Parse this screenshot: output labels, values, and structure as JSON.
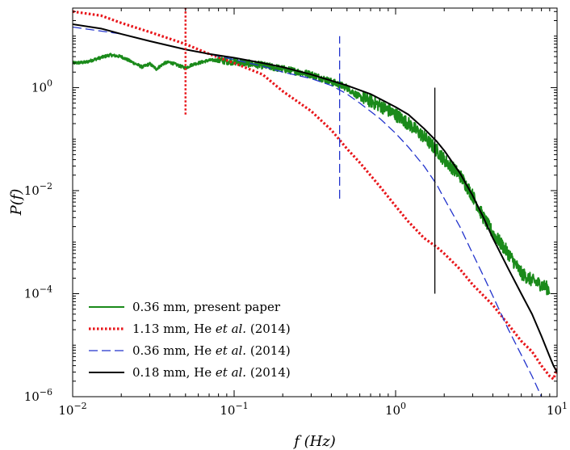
{
  "chart_data": {
    "type": "line",
    "xlabel": "f (Hz)",
    "ylabel": "P(f)",
    "xscale": "log",
    "yscale": "log",
    "xlim": [
      0.01,
      10
    ],
    "ylim": [
      1e-06,
      35
    ],
    "x_ticks": [
      {
        "value": 0.01,
        "base": "10",
        "exp": "−2"
      },
      {
        "value": 0.1,
        "base": "10",
        "exp": "−1"
      },
      {
        "value": 1,
        "base": "10",
        "exp": "0"
      },
      {
        "value": 10,
        "base": "10",
        "exp": "1"
      }
    ],
    "y_ticks": [
      {
        "value": 1e-06,
        "base": "10",
        "exp": "−6"
      },
      {
        "value": 0.0001,
        "base": "10",
        "exp": "−4"
      },
      {
        "value": 0.01,
        "base": "10",
        "exp": "−2"
      },
      {
        "value": 1,
        "base": "10",
        "exp": "0"
      }
    ],
    "legend_position": "bottom-left",
    "grid": false,
    "series": [
      {
        "name": "0.36 mm, present paper",
        "color": "#1a8a1a",
        "style": "solid",
        "noisy": true,
        "points": [
          [
            0.01,
            3.0
          ],
          [
            0.012,
            3.1
          ],
          [
            0.014,
            3.6
          ],
          [
            0.017,
            4.3
          ],
          [
            0.02,
            4.0
          ],
          [
            0.023,
            3.2
          ],
          [
            0.027,
            2.5
          ],
          [
            0.03,
            2.9
          ],
          [
            0.033,
            2.3
          ],
          [
            0.037,
            3.0
          ],
          [
            0.04,
            3.1
          ],
          [
            0.045,
            2.7
          ],
          [
            0.05,
            2.4
          ],
          [
            0.055,
            2.8
          ],
          [
            0.06,
            3.0
          ],
          [
            0.07,
            3.4
          ],
          [
            0.08,
            3.4
          ],
          [
            0.1,
            3.2
          ],
          [
            0.15,
            2.7
          ],
          [
            0.2,
            2.3
          ],
          [
            0.3,
            1.8
          ],
          [
            0.4,
            1.3
          ],
          [
            0.5,
            1.0
          ],
          [
            0.6,
            0.65
          ],
          [
            0.7,
            0.55
          ],
          [
            0.8,
            0.45
          ],
          [
            1.0,
            0.3
          ],
          [
            1.2,
            0.2
          ],
          [
            1.5,
            0.11
          ],
          [
            1.8,
            0.06
          ],
          [
            2.0,
            0.04
          ],
          [
            2.5,
            0.02
          ],
          [
            3.0,
            0.008
          ],
          [
            3.5,
            0.003
          ],
          [
            4.0,
            0.0015
          ],
          [
            5.0,
            0.0006
          ],
          [
            6.0,
            0.00025
          ],
          [
            7.0,
            0.00018
          ],
          [
            8.0,
            0.00015
          ],
          [
            9.0,
            0.00012
          ]
        ]
      },
      {
        "name": "1.13 mm, He et al. (2014)",
        "color": "#e8161b",
        "style": "dotted",
        "noisy": false,
        "points": [
          [
            0.01,
            30
          ],
          [
            0.015,
            25
          ],
          [
            0.02,
            18
          ],
          [
            0.03,
            12
          ],
          [
            0.05,
            7
          ],
          [
            0.07,
            4.5
          ],
          [
            0.1,
            3.0
          ],
          [
            0.15,
            1.8
          ],
          [
            0.2,
            0.85
          ],
          [
            0.3,
            0.35
          ],
          [
            0.4,
            0.15
          ],
          [
            0.5,
            0.065
          ],
          [
            0.6,
            0.035
          ],
          [
            0.8,
            0.012
          ],
          [
            1.0,
            0.005
          ],
          [
            1.2,
            0.0025
          ],
          [
            1.5,
            0.0012
          ],
          [
            1.8,
            0.0008
          ],
          [
            2.0,
            0.0006
          ],
          [
            2.5,
            0.0003
          ],
          [
            3.0,
            0.00015
          ],
          [
            4.0,
            6e-05
          ],
          [
            5.0,
            2.5e-05
          ],
          [
            6.0,
            1.2e-05
          ],
          [
            7.0,
            7.5e-06
          ],
          [
            8.0,
            4e-06
          ],
          [
            9.0,
            2.5e-06
          ],
          [
            9.5,
            2.2e-06
          ],
          [
            10,
            3.5e-06
          ]
        ]
      },
      {
        "name": "0.36 mm, He et al. (2014)",
        "color": "#2233cc",
        "style": "dashed",
        "noisy": false,
        "points": [
          [
            0.01,
            15
          ],
          [
            0.02,
            11
          ],
          [
            0.03,
            8
          ],
          [
            0.05,
            5.5
          ],
          [
            0.07,
            4.5
          ],
          [
            0.1,
            3.5
          ],
          [
            0.15,
            2.6
          ],
          [
            0.2,
            2.0
          ],
          [
            0.3,
            1.5
          ],
          [
            0.4,
            1.1
          ],
          [
            0.5,
            0.75
          ],
          [
            0.6,
            0.5
          ],
          [
            0.8,
            0.25
          ],
          [
            1.0,
            0.13
          ],
          [
            1.2,
            0.07
          ],
          [
            1.5,
            0.03
          ],
          [
            1.8,
            0.013
          ],
          [
            2.0,
            0.007
          ],
          [
            2.5,
            0.002
          ],
          [
            3.0,
            0.0006
          ],
          [
            3.5,
            0.00022
          ],
          [
            4.0,
            9e-05
          ],
          [
            5.0,
            2e-05
          ],
          [
            6.0,
            6.5e-06
          ],
          [
            7.0,
            2.5e-06
          ],
          [
            8.0,
            1e-06
          ],
          [
            9.0,
            5e-07
          ]
        ]
      },
      {
        "name": "0.18 mm, He et al. (2014)",
        "color": "#000000",
        "style": "solid",
        "noisy": false,
        "points": [
          [
            0.01,
            17
          ],
          [
            0.015,
            14
          ],
          [
            0.02,
            11
          ],
          [
            0.03,
            8
          ],
          [
            0.05,
            5.5
          ],
          [
            0.07,
            4.5
          ],
          [
            0.1,
            3.8
          ],
          [
            0.15,
            3.0
          ],
          [
            0.2,
            2.5
          ],
          [
            0.3,
            1.8
          ],
          [
            0.5,
            1.1
          ],
          [
            0.7,
            0.75
          ],
          [
            1.0,
            0.42
          ],
          [
            1.2,
            0.3
          ],
          [
            1.5,
            0.16
          ],
          [
            1.8,
            0.09
          ],
          [
            2.0,
            0.06
          ],
          [
            2.5,
            0.022
          ],
          [
            3.0,
            0.008
          ],
          [
            3.5,
            0.003
          ],
          [
            4.0,
            0.0012
          ],
          [
            5.0,
            0.0003
          ],
          [
            6.0,
            0.0001
          ],
          [
            7.0,
            4e-05
          ],
          [
            8.0,
            1.5e-05
          ],
          [
            9.0,
            6e-06
          ],
          [
            9.5,
            4e-06
          ],
          [
            10,
            3e-06
          ]
        ]
      }
    ],
    "vertical_markers": [
      {
        "x": 0.05,
        "y_bottom": 0.3,
        "y_top": 35,
        "color": "#e8161b",
        "style": "dotted"
      },
      {
        "x": 0.45,
        "y_bottom": 0.007,
        "y_top": 10,
        "color": "#2233cc",
        "style": "dashed"
      },
      {
        "x": 1.75,
        "y_bottom": 0.0001,
        "y_top": 1.0,
        "color": "#000000",
        "style": "solid"
      }
    ]
  }
}
